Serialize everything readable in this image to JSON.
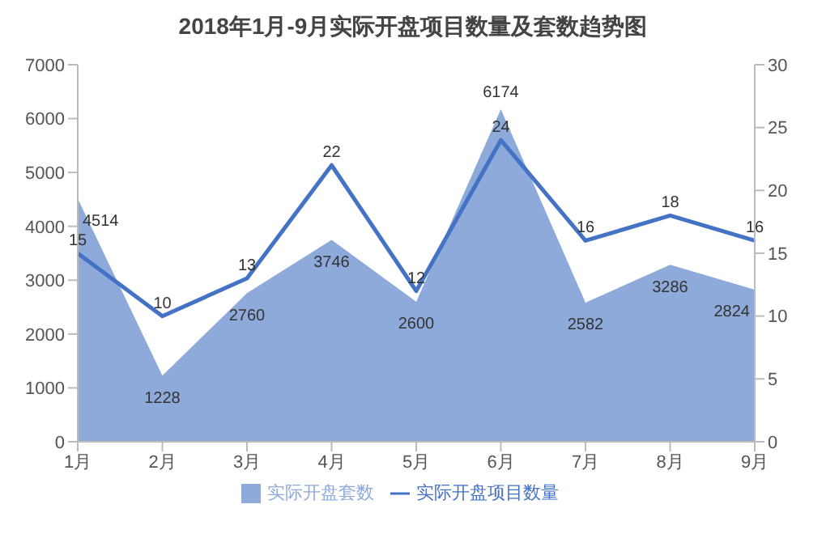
{
  "chart_data": {
    "type": "area",
    "title": "2018年1月-9月实际开盘项目数量及套数趋势图",
    "categories": [
      "1月",
      "2月",
      "3月",
      "4月",
      "5月",
      "6月",
      "7月",
      "8月",
      "9月"
    ],
    "series": [
      {
        "name": "实际开盘套数",
        "color": "#8eaadb",
        "values": [
          4514,
          1228,
          2760,
          3746,
          2600,
          6174,
          2582,
          3286,
          2824
        ]
      },
      {
        "name": "实际开盘项目数量",
        "type": "line",
        "axis": "y2",
        "color": "#4472c4",
        "values": [
          15,
          10,
          13,
          22,
          12,
          24,
          16,
          18,
          16
        ]
      }
    ],
    "ylim": [
      0,
      7000
    ],
    "yticks": [
      0,
      1000,
      2000,
      3000,
      4000,
      5000,
      6000,
      7000
    ],
    "y2lim": [
      0,
      30
    ],
    "y2ticks": [
      0,
      5,
      10,
      15,
      20,
      25,
      30
    ],
    "data_labels": true,
    "legend": "bottom"
  }
}
